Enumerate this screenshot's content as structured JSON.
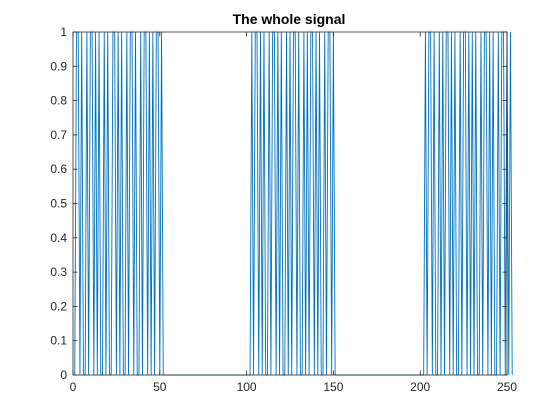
{
  "chart_data": {
    "type": "line",
    "title": "The whole signal",
    "xlabel": "",
    "ylabel": "",
    "xlim": [
      0,
      250
    ],
    "ylim": [
      0,
      1
    ],
    "x_ticks": [
      0,
      50,
      100,
      150,
      200,
      250
    ],
    "y_ticks": [
      0,
      0.1,
      0.2,
      0.3,
      0.4,
      0.5,
      0.6,
      0.7,
      0.8,
      0.9,
      1
    ],
    "grid": false,
    "legend": "none",
    "line_color": "#0072BD",
    "series": [
      {
        "values": [
          0,
          1,
          1,
          0,
          1,
          0,
          0,
          1,
          0,
          1,
          1,
          0,
          1,
          0,
          1,
          0,
          0,
          1,
          0,
          1,
          0,
          0,
          1,
          1,
          0,
          1,
          0,
          1,
          0,
          0,
          1,
          0,
          1,
          1,
          0,
          1,
          0,
          0,
          1,
          0,
          1,
          1,
          0,
          1,
          0,
          1,
          0,
          1,
          1,
          0,
          1,
          0,
          0,
          0,
          0,
          0,
          0,
          0,
          0,
          0,
          0,
          0,
          0,
          0,
          0,
          0,
          0,
          0,
          0,
          0,
          0,
          0,
          0,
          0,
          0,
          0,
          0,
          0,
          0,
          0,
          0,
          0,
          0,
          0,
          0,
          0,
          0,
          0,
          0,
          0,
          0,
          0,
          0,
          0,
          0,
          0,
          0,
          0,
          0,
          0,
          0,
          0,
          1,
          0,
          1,
          1,
          0,
          1,
          0,
          1,
          0,
          0,
          1,
          0,
          1,
          1,
          0,
          1,
          0,
          1,
          0,
          0,
          1,
          0,
          1,
          0,
          1,
          1,
          0,
          1,
          0,
          0,
          1,
          0,
          1,
          0,
          1,
          1,
          0,
          1,
          0,
          1,
          0,
          0,
          1,
          0,
          1,
          1,
          0,
          1,
          0,
          0,
          0,
          0,
          0,
          0,
          0,
          0,
          0,
          0,
          0,
          0,
          0,
          0,
          0,
          0,
          0,
          0,
          0,
          0,
          0,
          0,
          0,
          0,
          0,
          0,
          0,
          0,
          0,
          0,
          0,
          0,
          0,
          0,
          0,
          0,
          0,
          0,
          0,
          0,
          0,
          0,
          0,
          0,
          0,
          0,
          0,
          0,
          0,
          0,
          0,
          0,
          1,
          0,
          1,
          1,
          0,
          1,
          0,
          0,
          1,
          0,
          1,
          0,
          1,
          1,
          0,
          1,
          0,
          1,
          0,
          0,
          1,
          0,
          1,
          1,
          0,
          1,
          0,
          1,
          0,
          1,
          0,
          0,
          1,
          0,
          1,
          1,
          0,
          1,
          0,
          1,
          0,
          0,
          1,
          0,
          1,
          1,
          0,
          1,
          0,
          1,
          0
        ]
      }
    ]
  }
}
